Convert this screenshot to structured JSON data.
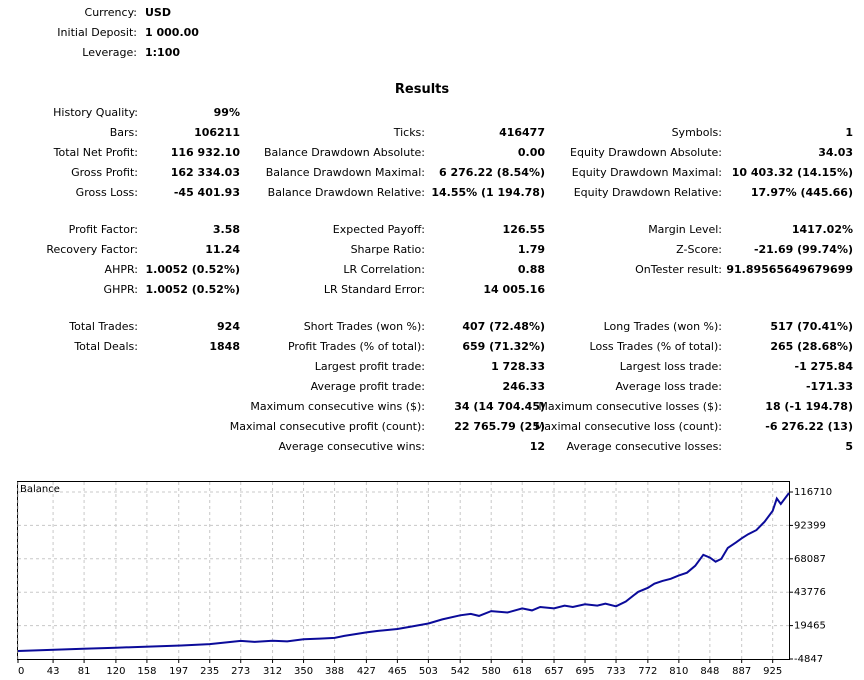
{
  "header": {
    "currency_label": "Currency:",
    "currency_value": "USD",
    "deposit_label": "Initial Deposit:",
    "deposit_value": "1 000.00",
    "leverage_label": "Leverage:",
    "leverage_value": "1:100"
  },
  "results_title": "Results",
  "rows": {
    "history_quality": {
      "label": "History Quality:",
      "value": "99%"
    },
    "bars": {
      "label": "Bars:",
      "value": "106211"
    },
    "ticks": {
      "label": "Ticks:",
      "value": "416477"
    },
    "symbols": {
      "label": "Symbols:",
      "value": "1"
    },
    "total_net_profit": {
      "label": "Total Net Profit:",
      "value": "116 932.10"
    },
    "balance_dd_abs": {
      "label": "Balance Drawdown Absolute:",
      "value": "0.00"
    },
    "equity_dd_abs": {
      "label": "Equity Drawdown Absolute:",
      "value": "34.03"
    },
    "gross_profit": {
      "label": "Gross Profit:",
      "value": "162 334.03"
    },
    "balance_dd_max": {
      "label": "Balance Drawdown Maximal:",
      "value": "6 276.22 (8.54%)"
    },
    "equity_dd_max": {
      "label": "Equity Drawdown Maximal:",
      "value": "10 403.32 (14.15%)"
    },
    "gross_loss": {
      "label": "Gross Loss:",
      "value": "-45 401.93"
    },
    "balance_dd_rel": {
      "label": "Balance Drawdown Relative:",
      "value": "14.55% (1 194.78)"
    },
    "equity_dd_rel": {
      "label": "Equity Drawdown Relative:",
      "value": "17.97% (445.66)"
    },
    "profit_factor": {
      "label": "Profit Factor:",
      "value": "3.58"
    },
    "expected_payoff": {
      "label": "Expected Payoff:",
      "value": "126.55"
    },
    "margin_level": {
      "label": "Margin Level:",
      "value": "1417.02%"
    },
    "recovery_factor": {
      "label": "Recovery Factor:",
      "value": "11.24"
    },
    "sharpe_ratio": {
      "label": "Sharpe Ratio:",
      "value": "1.79"
    },
    "z_score": {
      "label": "Z-Score:",
      "value": "-21.69 (99.74%)"
    },
    "ahpr": {
      "label": "AHPR:",
      "value": "1.0052 (0.52%)"
    },
    "lr_correlation": {
      "label": "LR Correlation:",
      "value": "0.88"
    },
    "ontester_result": {
      "label": "OnTester result:",
      "value": "91.89565649679699"
    },
    "ghpr": {
      "label": "GHPR:",
      "value": "1.0052 (0.52%)"
    },
    "lr_std_error": {
      "label": "LR Standard Error:",
      "value": "14 005.16"
    },
    "total_trades": {
      "label": "Total Trades:",
      "value": "924"
    },
    "short_trades": {
      "label": "Short Trades (won %):",
      "value": "407 (72.48%)"
    },
    "long_trades": {
      "label": "Long Trades (won %):",
      "value": "517 (70.41%)"
    },
    "total_deals": {
      "label": "Total Deals:",
      "value": "1848"
    },
    "profit_trades": {
      "label": "Profit Trades (% of total):",
      "value": "659 (71.32%)"
    },
    "loss_trades": {
      "label": "Loss Trades (% of total):",
      "value": "265 (28.68%)"
    },
    "largest_profit": {
      "label": "Largest profit trade:",
      "value": "1 728.33"
    },
    "largest_loss": {
      "label": "Largest loss trade:",
      "value": "-1 275.84"
    },
    "average_profit": {
      "label": "Average profit trade:",
      "value": "246.33"
    },
    "average_loss": {
      "label": "Average loss trade:",
      "value": "-171.33"
    },
    "max_consec_wins": {
      "label": "Maximum consecutive wins ($):",
      "value": "34 (14 704.45)"
    },
    "max_consec_losses": {
      "label": "Maximum consecutive losses ($):",
      "value": "18 (-1 194.78)"
    },
    "maximal_consec_profit": {
      "label": "Maximal consecutive profit (count):",
      "value": "22 765.79 (25)"
    },
    "maximal_consec_loss": {
      "label": "Maximal consecutive loss (count):",
      "value": "-6 276.22 (13)"
    },
    "avg_consec_wins": {
      "label": "Average consecutive wins:",
      "value": "12"
    },
    "avg_consec_losses": {
      "label": "Average consecutive losses:",
      "value": "5"
    }
  },
  "chart_data": {
    "type": "line",
    "title": "Balance",
    "x_ticks": [
      "0",
      "43",
      "81",
      "120",
      "158",
      "197",
      "235",
      "273",
      "312",
      "350",
      "388",
      "427",
      "465",
      "503",
      "542",
      "580",
      "618",
      "657",
      "695",
      "733",
      "772",
      "810",
      "848",
      "887",
      "925"
    ],
    "y_ticks": [
      "116710",
      "92399",
      "68087",
      "43776",
      "19465",
      "-4847"
    ],
    "xlim": [
      0,
      945
    ],
    "ylim": [
      -4847,
      124000
    ],
    "grid": true,
    "colors": {
      "line": "#0b0b9a",
      "grid": "#c8c8c8",
      "frame": "#000000"
    },
    "series": [
      {
        "x": [
          0,
          40,
          80,
          120,
          160,
          200,
          235,
          260,
          273,
          290,
          312,
          330,
          350,
          370,
          388,
          400,
          427,
          440,
          465,
          480,
          503,
          520,
          542,
          555,
          565,
          580,
          600,
          618,
          630,
          640,
          657,
          670,
          680,
          695,
          710,
          720,
          733,
          745,
          760,
          772,
          780,
          790,
          800,
          810,
          820,
          830,
          840,
          848,
          855,
          862,
          870,
          880,
          887,
          895,
          905,
          915,
          925,
          930,
          935,
          945
        ],
        "y": [
          1000,
          1800,
          2600,
          3400,
          4200,
          5000,
          6000,
          7500,
          8300,
          7600,
          8500,
          8000,
          9500,
          10000,
          10500,
          12000,
          14500,
          15500,
          17000,
          18500,
          21000,
          24000,
          27000,
          28000,
          26500,
          30000,
          29000,
          32000,
          30500,
          33000,
          32000,
          34000,
          33000,
          35000,
          34000,
          35500,
          33500,
          37000,
          44000,
          47000,
          50000,
          52000,
          53500,
          56000,
          58000,
          63000,
          71000,
          69000,
          66000,
          68000,
          76000,
          80000,
          83000,
          86000,
          89000,
          95000,
          103000,
          112000,
          108000,
          116000
        ]
      }
    ]
  }
}
